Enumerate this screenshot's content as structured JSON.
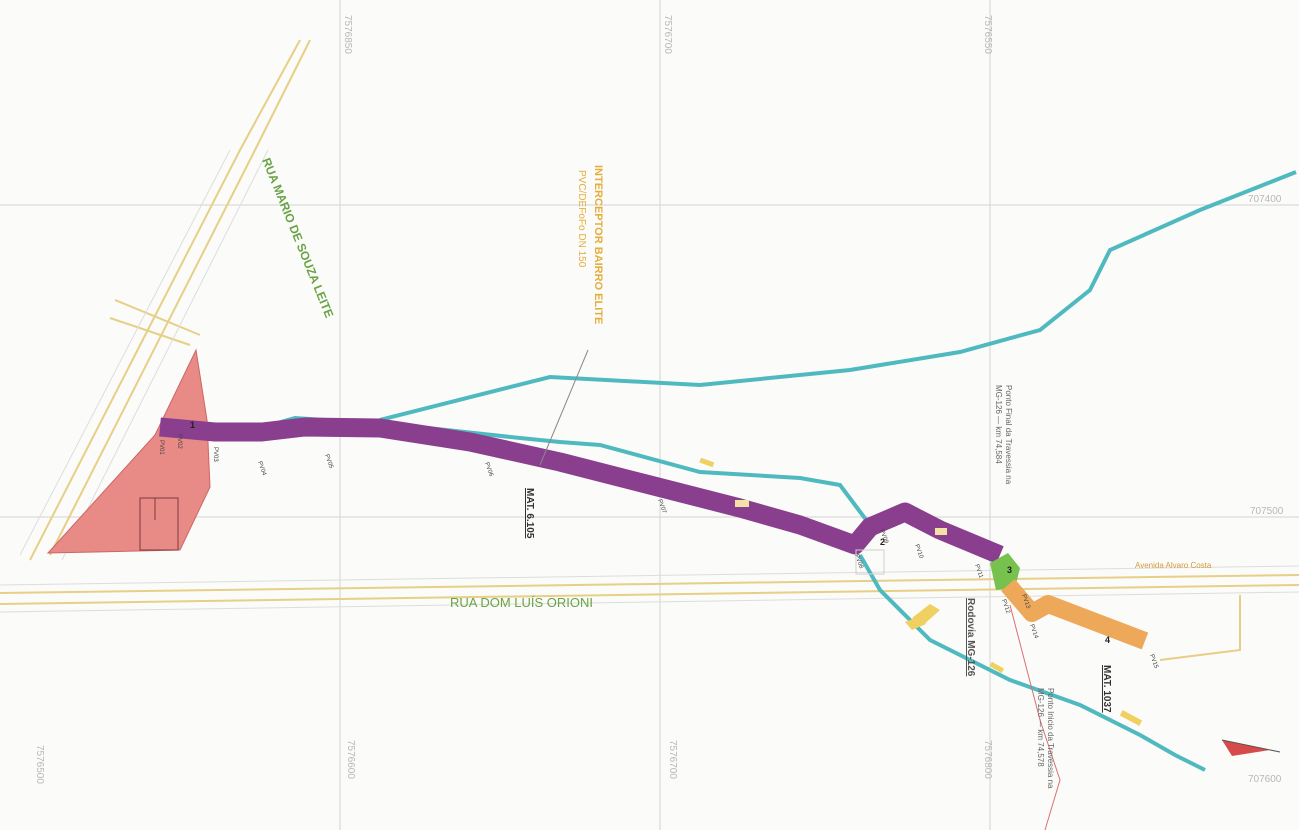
{
  "map": {
    "street_labels": {
      "rua_mario": "RUA MARIO DE SOUZA LEITE",
      "rua_dom": "RUA DOM LUÍS ORIONI",
      "rodovia": "Rodovia MG-126",
      "avenida": "Avenida Alvaro Costa"
    },
    "interceptor": {
      "line1": "INTERCEPTOR BAIRRO ELITE",
      "line2": "PVC/DEFoFo DN 150"
    },
    "mat_labels": {
      "mat_a": "MAT. 6.105",
      "mat_b": "MAT. 1037"
    },
    "notes": {
      "ponto_final": "Ponto Final da Travessia na",
      "ponto_final_road": "MG-126 — km 74,584",
      "ponto_inicio": "Ponto Inicio da Travessia na",
      "ponto_inicio_road": "MG-126 — km 74,578"
    },
    "grid_labels": {
      "top": [
        "7576850",
        "7576700",
        "7576550"
      ],
      "bottom": [
        "7576500",
        "7576600",
        "7576700",
        "7576800"
      ],
      "right": [
        "707400",
        "707500",
        "707600"
      ]
    },
    "pv_labels": [
      "PV01",
      "PV02",
      "PV03",
      "PV04",
      "PV05",
      "PV06",
      "PV07",
      "PV08",
      "PV09",
      "PV10",
      "PV11",
      "PV12",
      "PV13",
      "PV14",
      "PV15"
    ],
    "area_numbers": [
      "1",
      "2",
      "3",
      "4"
    ],
    "colors": {
      "purple_band": "#8a3e8e",
      "pink_area": "#e88a85",
      "orange_band": "#eea85a",
      "green_patch": "#77c24e",
      "river": "#4fb9c0",
      "road": "#e6cf86",
      "grid": "#c9c9c9",
      "street_text": "#6aa346",
      "interceptor_text": "#e4ae3c"
    }
  }
}
